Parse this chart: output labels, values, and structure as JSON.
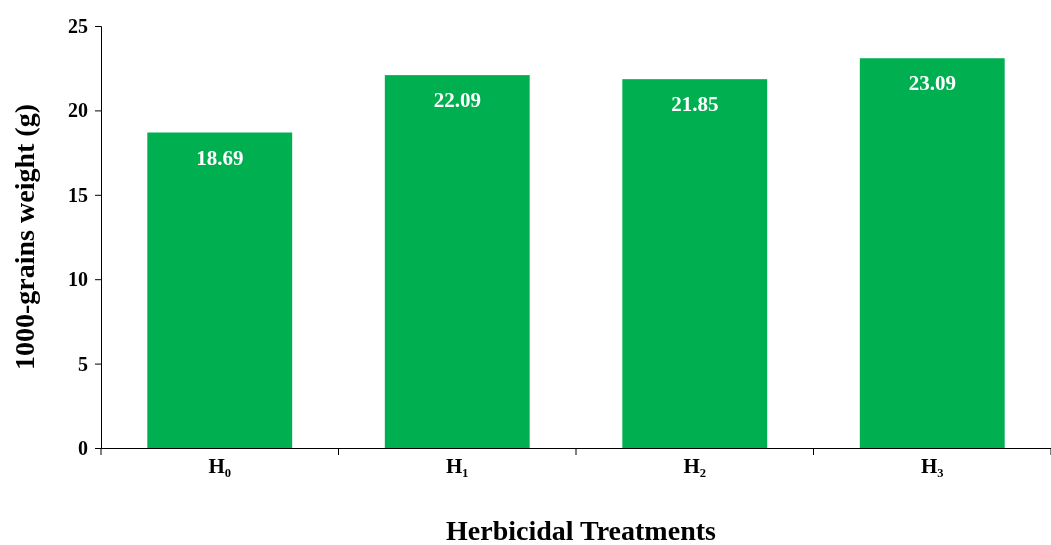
{
  "chart_data": {
    "type": "bar",
    "xlabel": "Herbicidal Treatments",
    "ylabel": "1000-grains weight (g)",
    "categories": [
      "H₀",
      "H₁",
      "H₂",
      "H₃"
    ],
    "values": [
      18.69,
      22.09,
      21.85,
      23.09
    ],
    "color": "#00b050",
    "data_labels": true,
    "ylim": [
      0,
      25
    ],
    "yticks": [
      0,
      5,
      10,
      15,
      20,
      25
    ],
    "grid": false
  }
}
